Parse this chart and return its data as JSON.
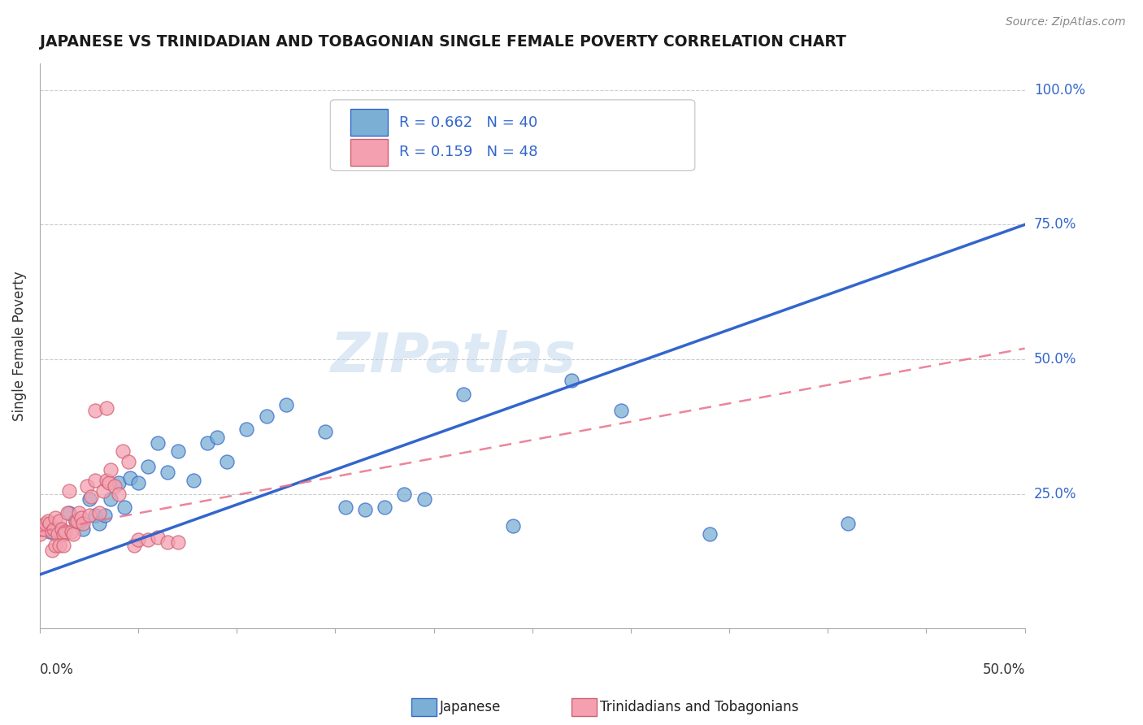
{
  "title": "JAPANESE VS TRINIDADIAN AND TOBAGONIAN SINGLE FEMALE POVERTY CORRELATION CHART",
  "source": "Source: ZipAtlas.com",
  "ylabel": "Single Female Poverty",
  "legend_blue_label": "R = 0.662   N = 40",
  "legend_pink_label": "R = 0.159   N = 48",
  "legend_bottom_japanese": "Japanese",
  "legend_bottom_trinidadian": "Trinidadians and Tobagonians",
  "watermark": "ZIPatlas",
  "blue_color": "#7BAFD4",
  "pink_color": "#F4A0B0",
  "blue_line_color": "#3366CC",
  "pink_line_color": "#E8708A",
  "blue_scatter_x": [
    0.005,
    0.008,
    0.01,
    0.012,
    0.015,
    0.018,
    0.02,
    0.022,
    0.025,
    0.028,
    0.03,
    0.033,
    0.036,
    0.04,
    0.043,
    0.046,
    0.05,
    0.055,
    0.06,
    0.065,
    0.07,
    0.078,
    0.085,
    0.09,
    0.095,
    0.105,
    0.115,
    0.125,
    0.145,
    0.155,
    0.165,
    0.175,
    0.185,
    0.195,
    0.215,
    0.24,
    0.27,
    0.295,
    0.34,
    0.41
  ],
  "blue_scatter_y": [
    0.18,
    0.175,
    0.185,
    0.175,
    0.215,
    0.2,
    0.195,
    0.185,
    0.24,
    0.21,
    0.195,
    0.21,
    0.24,
    0.27,
    0.225,
    0.28,
    0.27,
    0.3,
    0.345,
    0.29,
    0.33,
    0.275,
    0.345,
    0.355,
    0.31,
    0.37,
    0.395,
    0.415,
    0.365,
    0.225,
    0.22,
    0.225,
    0.25,
    0.24,
    0.435,
    0.19,
    0.46,
    0.405,
    0.175,
    0.195
  ],
  "pink_scatter_x": [
    0.0,
    0.001,
    0.002,
    0.003,
    0.004,
    0.005,
    0.006,
    0.007,
    0.008,
    0.009,
    0.01,
    0.011,
    0.012,
    0.013,
    0.014,
    0.015,
    0.016,
    0.017,
    0.018,
    0.019,
    0.02,
    0.021,
    0.022,
    0.024,
    0.025,
    0.026,
    0.028,
    0.03,
    0.032,
    0.034,
    0.035,
    0.036,
    0.038,
    0.04,
    0.042,
    0.045,
    0.048,
    0.05,
    0.055,
    0.06,
    0.065,
    0.07,
    0.028,
    0.034,
    0.006,
    0.008,
    0.01,
    0.012
  ],
  "pink_scatter_y": [
    0.175,
    0.185,
    0.185,
    0.195,
    0.2,
    0.195,
    0.18,
    0.185,
    0.205,
    0.175,
    0.2,
    0.185,
    0.175,
    0.18,
    0.215,
    0.255,
    0.18,
    0.175,
    0.2,
    0.2,
    0.215,
    0.205,
    0.195,
    0.265,
    0.21,
    0.245,
    0.275,
    0.215,
    0.255,
    0.275,
    0.27,
    0.295,
    0.265,
    0.25,
    0.33,
    0.31,
    0.155,
    0.165,
    0.165,
    0.17,
    0.16,
    0.16,
    0.405,
    0.41,
    0.145,
    0.155,
    0.155,
    0.155
  ],
  "blue_line_x0": 0.0,
  "blue_line_y0": 0.1,
  "blue_line_x1": 0.5,
  "blue_line_y1": 0.75,
  "pink_line_x0": 0.0,
  "pink_line_y0": 0.18,
  "pink_line_x1": 0.5,
  "pink_line_y1": 0.52,
  "xlim": [
    0.0,
    0.5
  ],
  "ylim": [
    0.0,
    1.05
  ],
  "yticks": [
    0.25,
    0.5,
    0.75,
    1.0
  ],
  "ytick_labels": [
    "25.0%",
    "50.0%",
    "75.0%",
    "100.0%"
  ]
}
